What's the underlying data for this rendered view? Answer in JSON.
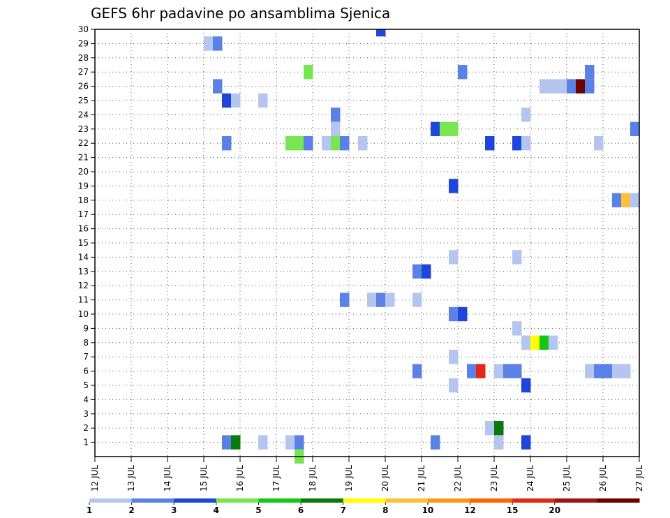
{
  "chart_data": {
    "type": "heatmap",
    "title": "GEFS 6hr padavine po ansamblima Sjenica",
    "xlabel": "",
    "ylabel": "",
    "x_tick_labels": [
      "12 JUL",
      "13 JUL",
      "14 JUL",
      "15 JUL",
      "16 JUL",
      "17 JUL",
      "18 JUL",
      "19 JUL",
      "20 JUL",
      "21 JUL",
      "22 JUL",
      "23 JUL",
      "24 JUL",
      "25 JUL",
      "26 JUL",
      "27 JUL"
    ],
    "xlim": [
      0,
      15
    ],
    "y_tick_labels": [
      "1",
      "2",
      "3",
      "4",
      "5",
      "6",
      "7",
      "8",
      "9",
      "10",
      "11",
      "12",
      "13",
      "14",
      "15",
      "16",
      "17",
      "18",
      "19",
      "20",
      "21",
      "22",
      "23",
      "24",
      "25",
      "26",
      "27",
      "28",
      "29",
      "30"
    ],
    "ylim": [
      0,
      30
    ],
    "grid": true,
    "colorbar": {
      "labels": [
        "1",
        "2",
        "3",
        "4",
        "5",
        "6",
        "7",
        "8",
        "10",
        "12",
        "15",
        "20"
      ],
      "colors": [
        "#b4c6f0",
        "#5a82e6",
        "#1e46dc",
        "#78e650",
        "#14c814",
        "#0a780a",
        "#ffff00",
        "#ffbe3c",
        "#ff9614",
        "#ff6400",
        "#e12814",
        "#a01414",
        "#6e0000"
      ]
    },
    "cells": [
      {
        "member": 30,
        "t": 7.75,
        "b": 2
      },
      {
        "member": 29,
        "t": 3.0,
        "b": 0
      },
      {
        "member": 29,
        "t": 3.25,
        "b": 1
      },
      {
        "member": 27,
        "t": 5.75,
        "b": 3
      },
      {
        "member": 27,
        "t": 10.0,
        "b": 1
      },
      {
        "member": 26,
        "t": 3.25,
        "b": 1
      },
      {
        "member": 26,
        "t": 12.25,
        "b": 0
      },
      {
        "member": 26,
        "t": 12.5,
        "b": 0
      },
      {
        "member": 26,
        "t": 12.75,
        "b": 0
      },
      {
        "member": 26,
        "t": 13.0,
        "b": 1
      },
      {
        "member": 26,
        "t": 13.25,
        "b": 12
      },
      {
        "member": 26,
        "t": 13.5,
        "b": 1
      },
      {
        "member": 27,
        "t": 13.5,
        "b": 1
      },
      {
        "member": 25,
        "t": 3.5,
        "b": 2
      },
      {
        "member": 25,
        "t": 3.75,
        "b": 0
      },
      {
        "member": 25,
        "t": 4.5,
        "b": 0
      },
      {
        "member": 24,
        "t": 6.5,
        "b": 1
      },
      {
        "member": 24,
        "t": 11.75,
        "b": 0
      },
      {
        "member": 23,
        "t": 6.5,
        "b": 0
      },
      {
        "member": 23,
        "t": 9.25,
        "b": 2
      },
      {
        "member": 23,
        "t": 9.5,
        "b": 3
      },
      {
        "member": 23,
        "t": 9.75,
        "b": 3
      },
      {
        "member": 23,
        "t": 14.75,
        "b": 1
      },
      {
        "member": 22,
        "t": 3.5,
        "b": 1
      },
      {
        "member": 22,
        "t": 5.25,
        "b": 3
      },
      {
        "member": 22,
        "t": 5.5,
        "b": 3
      },
      {
        "member": 22,
        "t": 5.75,
        "b": 1
      },
      {
        "member": 22,
        "t": 6.25,
        "b": 0
      },
      {
        "member": 22,
        "t": 6.5,
        "b": 3
      },
      {
        "member": 22,
        "t": 6.75,
        "b": 1
      },
      {
        "member": 22,
        "t": 7.25,
        "b": 0
      },
      {
        "member": 22,
        "t": 10.75,
        "b": 2
      },
      {
        "member": 22,
        "t": 11.5,
        "b": 2
      },
      {
        "member": 22,
        "t": 11.75,
        "b": 0
      },
      {
        "member": 22,
        "t": 13.75,
        "b": 0
      },
      {
        "member": 19,
        "t": 9.75,
        "b": 2
      },
      {
        "member": 18,
        "t": 14.25,
        "b": 1
      },
      {
        "member": 18,
        "t": 14.5,
        "b": 7
      },
      {
        "member": 18,
        "t": 14.75,
        "b": 0
      },
      {
        "member": 14,
        "t": 9.75,
        "b": 0
      },
      {
        "member": 14,
        "t": 11.5,
        "b": 0
      },
      {
        "member": 13,
        "t": 8.75,
        "b": 1
      },
      {
        "member": 13,
        "t": 9.0,
        "b": 2
      },
      {
        "member": 11,
        "t": 6.75,
        "b": 1
      },
      {
        "member": 11,
        "t": 7.5,
        "b": 0
      },
      {
        "member": 11,
        "t": 7.75,
        "b": 1
      },
      {
        "member": 11,
        "t": 8.0,
        "b": 0
      },
      {
        "member": 11,
        "t": 8.75,
        "b": 0
      },
      {
        "member": 10,
        "t": 9.75,
        "b": 1
      },
      {
        "member": 10,
        "t": 10.0,
        "b": 2
      },
      {
        "member": 9,
        "t": 11.5,
        "b": 0
      },
      {
        "member": 8,
        "t": 11.75,
        "b": 0
      },
      {
        "member": 8,
        "t": 12.0,
        "b": 6
      },
      {
        "member": 8,
        "t": 12.25,
        "b": 4
      },
      {
        "member": 8,
        "t": 12.5,
        "b": 0
      },
      {
        "member": 7,
        "t": 9.75,
        "b": 0
      },
      {
        "member": 6,
        "t": 8.75,
        "b": 1
      },
      {
        "member": 6,
        "t": 10.25,
        "b": 1
      },
      {
        "member": 6,
        "t": 10.5,
        "b": 10
      },
      {
        "member": 6,
        "t": 11.0,
        "b": 0
      },
      {
        "member": 6,
        "t": 11.25,
        "b": 1
      },
      {
        "member": 6,
        "t": 11.5,
        "b": 1
      },
      {
        "member": 6,
        "t": 13.5,
        "b": 0
      },
      {
        "member": 6,
        "t": 13.75,
        "b": 1
      },
      {
        "member": 6,
        "t": 14.0,
        "b": 1
      },
      {
        "member": 6,
        "t": 14.25,
        "b": 0
      },
      {
        "member": 6,
        "t": 14.5,
        "b": 0
      },
      {
        "member": 5,
        "t": 9.75,
        "b": 0
      },
      {
        "member": 5,
        "t": 11.75,
        "b": 2
      },
      {
        "member": 2,
        "t": 10.75,
        "b": 0
      },
      {
        "member": 2,
        "t": 11.0,
        "b": 5
      },
      {
        "member": 1,
        "t": 3.5,
        "b": 1
      },
      {
        "member": 1,
        "t": 3.75,
        "b": 5
      },
      {
        "member": 1,
        "t": 4.5,
        "b": 0
      },
      {
        "member": 1,
        "t": 5.25,
        "b": 0
      },
      {
        "member": 1,
        "t": 5.5,
        "b": 1
      },
      {
        "member": 1,
        "t": 9.25,
        "b": 1
      },
      {
        "member": 1,
        "t": 11.0,
        "b": 0
      },
      {
        "member": 1,
        "t": 11.75,
        "b": 2
      },
      {
        "member": 0,
        "t": 5.5,
        "b": 3
      }
    ]
  }
}
